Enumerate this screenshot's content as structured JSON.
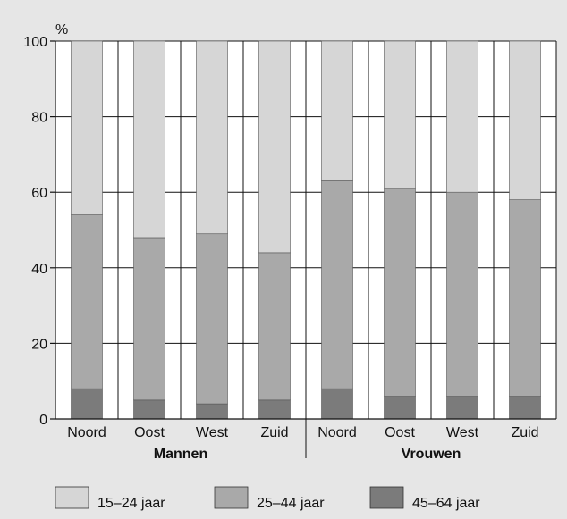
{
  "chart_data": {
    "type": "bar",
    "stacked": true,
    "ylabel": "%",
    "ylim": [
      0,
      100
    ],
    "yticks": [
      0,
      20,
      40,
      60,
      80,
      100
    ],
    "grid": true,
    "legend_position": "bottom",
    "groups": [
      {
        "label": "Mannen",
        "categories": [
          "Noord",
          "Oost",
          "West",
          "Zuid"
        ]
      },
      {
        "label": "Vrouwen",
        "categories": [
          "Noord",
          "Oost",
          "West",
          "Zuid"
        ]
      }
    ],
    "series": [
      {
        "name": "45–64 jaar",
        "color": "#7b7b7b",
        "values": [
          8,
          5,
          4,
          5,
          8,
          6,
          6,
          6
        ]
      },
      {
        "name": "25–44 jaar",
        "color": "#a9a9a9",
        "values": [
          46,
          43,
          45,
          39,
          55,
          55,
          54,
          52
        ]
      },
      {
        "name": "15–24 jaar",
        "color": "#d6d6d6",
        "values": [
          46,
          52,
          51,
          56,
          37,
          39,
          40,
          42
        ]
      }
    ],
    "legend_order": [
      "15–24 jaar",
      "25–44 jaar",
      "45–64 jaar"
    ]
  }
}
